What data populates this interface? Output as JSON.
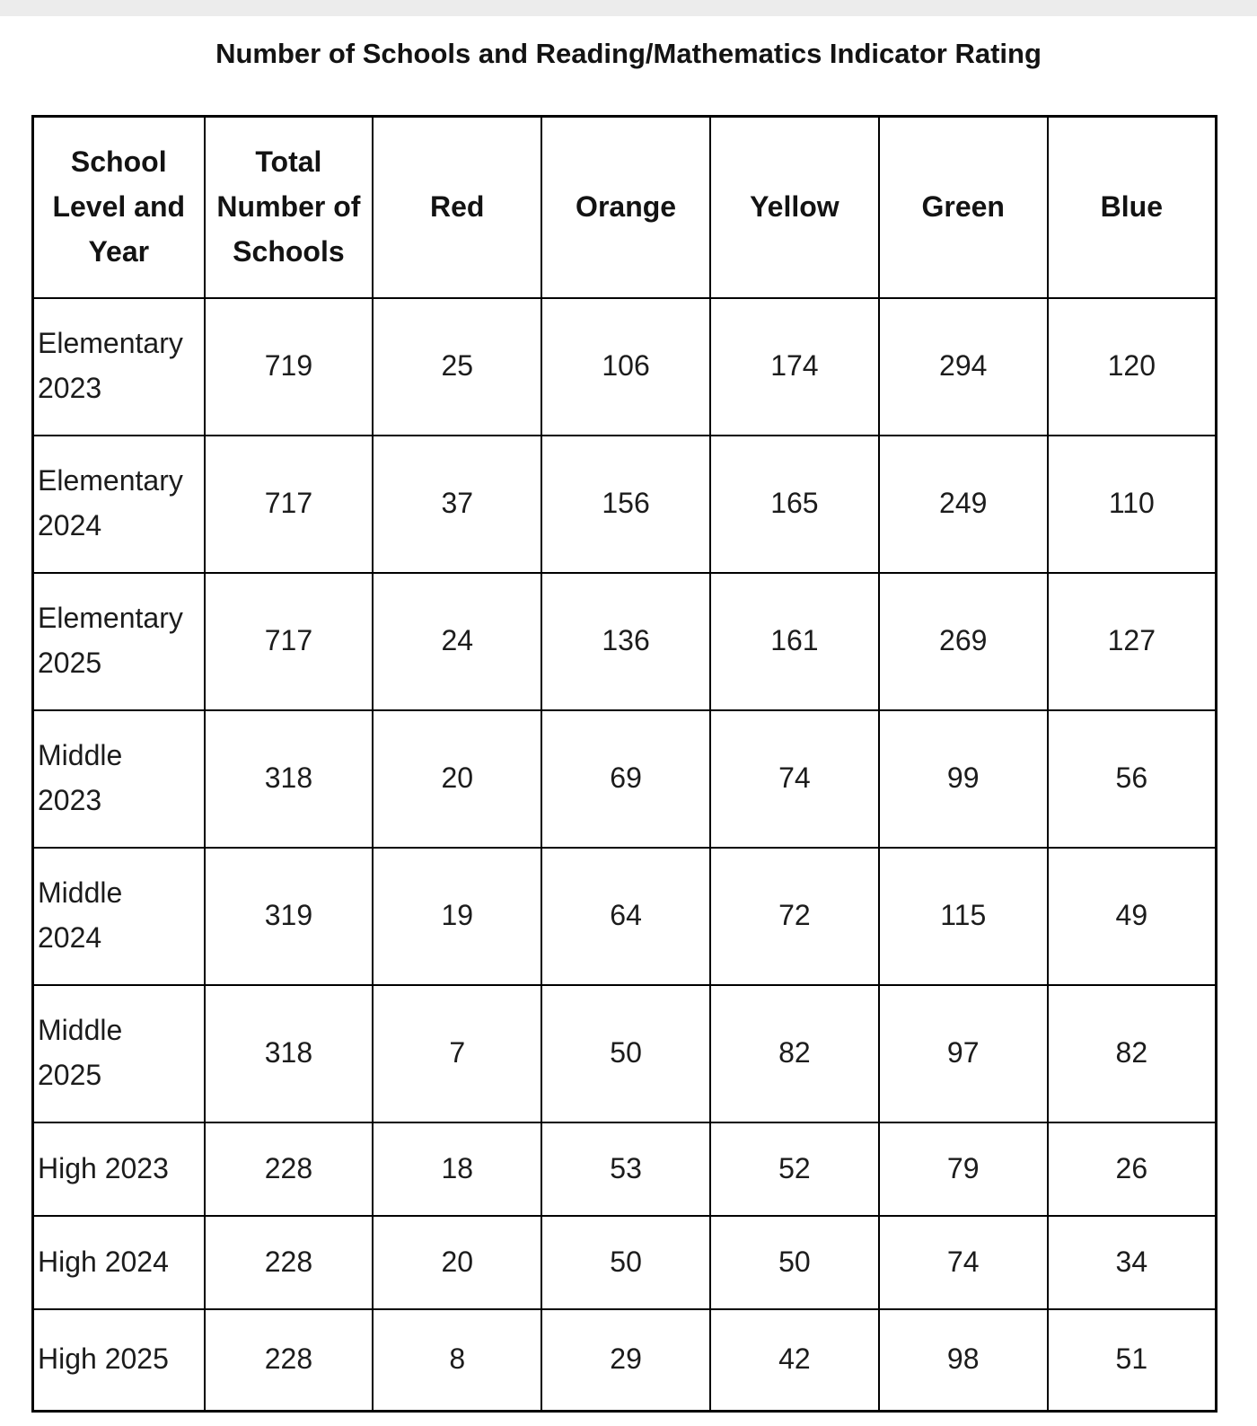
{
  "page": {
    "background_color": "#ffffff",
    "top_strip_color": "#ececec",
    "text_color": "#1c1c1c",
    "border_color": "#000000"
  },
  "chart_data": {
    "type": "table",
    "title": "Number of Schools and Reading/Mathematics Indicator Rating",
    "columns": [
      "School Level and Year",
      "Total Number of Schools",
      "Red",
      "Orange",
      "Yellow",
      "Green",
      "Blue"
    ],
    "rows": [
      [
        "Elementary 2023",
        719,
        25,
        106,
        174,
        294,
        120
      ],
      [
        "Elementary 2024",
        717,
        37,
        156,
        165,
        249,
        110
      ],
      [
        "Elementary 2025",
        717,
        24,
        136,
        161,
        269,
        127
      ],
      [
        "Middle 2023",
        318,
        20,
        69,
        74,
        99,
        56
      ],
      [
        "Middle 2024",
        319,
        19,
        64,
        72,
        115,
        49
      ],
      [
        "Middle 2025",
        318,
        7,
        50,
        82,
        97,
        82
      ],
      [
        "High 2023",
        228,
        18,
        53,
        52,
        79,
        26
      ],
      [
        "High 2024",
        228,
        20,
        50,
        50,
        74,
        34
      ],
      [
        "High 2025",
        228,
        8,
        29,
        42,
        98,
        51
      ]
    ],
    "layout": {
      "header_bold": true,
      "grid": true,
      "first_column_align": "left",
      "value_align": "center"
    }
  }
}
